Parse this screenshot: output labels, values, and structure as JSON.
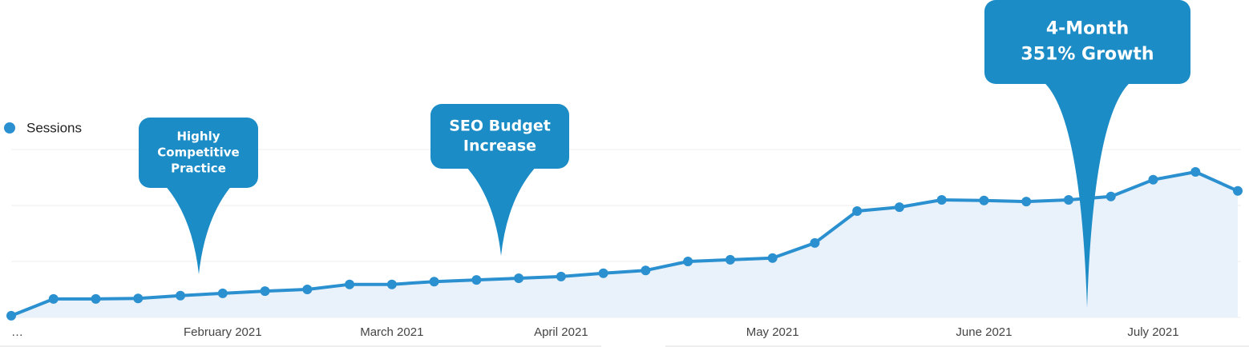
{
  "chart_data": {
    "type": "line",
    "categories": [
      "…",
      null,
      null,
      null,
      null,
      "February 2021",
      null,
      null,
      null,
      "March 2021",
      null,
      null,
      null,
      "April 2021",
      null,
      null,
      null,
      null,
      "May 2021",
      null,
      null,
      null,
      null,
      "June 2021",
      null,
      null,
      null,
      "July 2021",
      null,
      null
    ],
    "series": [
      {
        "name": "Sessions",
        "color": "#2b90cf",
        "fill": "#e9f2fa",
        "values": [
          0.03,
          0.33,
          0.33,
          0.34,
          0.39,
          0.43,
          0.47,
          0.5,
          0.59,
          0.59,
          0.64,
          0.67,
          0.7,
          0.73,
          0.79,
          0.84,
          1.0,
          1.03,
          1.06,
          1.33,
          1.9,
          1.97,
          2.1,
          2.09,
          2.07,
          2.1,
          2.16,
          2.46,
          2.6,
          2.26
        ]
      }
    ],
    "ylim": [
      0,
      3
    ],
    "yticks": [
      0,
      1,
      2,
      3
    ],
    "grid": true,
    "annotation_color": "#1b8cc6",
    "annotations": [
      {
        "lines": [
          "Highly",
          "Competitive",
          "Practice"
        ]
      },
      {
        "lines": [
          "SEO Budget",
          "Increase"
        ]
      },
      {
        "lines": [
          "4-Month",
          "351% Growth"
        ]
      }
    ]
  }
}
